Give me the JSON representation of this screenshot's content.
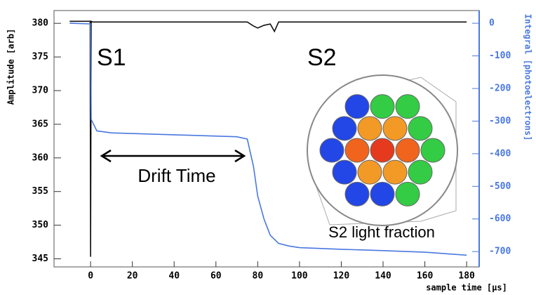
{
  "chart_data": {
    "type": "line",
    "xlabel": "sample time [µs]",
    "ylabel": "Amplitude [arb]",
    "y2label": "Integral [photoelectrons]",
    "xlim": [
      -17.5,
      186
    ],
    "xticks": [
      0,
      20,
      40,
      60,
      80,
      100,
      120,
      140,
      160,
      180
    ],
    "ylim": [
      343.8,
      381.9
    ],
    "yticks": [
      345,
      350,
      355,
      360,
      365,
      370,
      375,
      380
    ],
    "y2lim": [
      -747,
      39
    ],
    "y2ticks": [
      0,
      -100,
      -200,
      -300,
      -400,
      -500,
      -600,
      -700
    ],
    "y2color": "#4a78e0",
    "annotations": [
      "S1",
      "S2",
      "Drift Time",
      "S2 light fraction"
    ],
    "series": [
      {
        "color": "#111111",
        "x": [
          -10,
          -0.2,
          0,
          0.3,
          1,
          75,
          78,
          80,
          83,
          86,
          88,
          90,
          180
        ],
        "values": [
          380.3,
          380.3,
          345.3,
          380.3,
          380.2,
          380.2,
          379.6,
          379.3,
          379.7,
          379.9,
          378.8,
          380.2,
          380.2
        ]
      },
      {
        "color": "#4a78e0",
        "axis": "y2",
        "x": [
          -10,
          0,
          0.3,
          3,
          10,
          40,
          70,
          75,
          78,
          80,
          83,
          86,
          90,
          95,
          100,
          120,
          140,
          160,
          180
        ],
        "values": [
          0,
          -2,
          -295,
          -330,
          -336,
          -342,
          -348,
          -355,
          -440,
          -530,
          -600,
          -650,
          -675,
          -683,
          -688,
          -693,
          -697,
          -702,
          -711
        ]
      }
    ]
  }
}
